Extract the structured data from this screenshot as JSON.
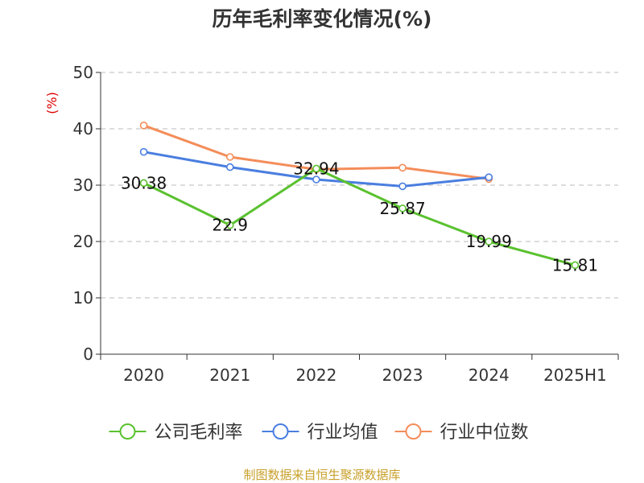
{
  "chart_data": {
    "type": "line",
    "title": "历年毛利率变化情况(%)",
    "ylabel": "(%)",
    "xlabel": "",
    "ylim": [
      0,
      50
    ],
    "yticks": [
      0,
      10,
      20,
      30,
      40,
      50
    ],
    "grid": true,
    "legend_position": "bottom-center",
    "categories": [
      "2020",
      "2021",
      "2022",
      "2023",
      "2024",
      "2025H1"
    ],
    "series": [
      {
        "name": "公司毛利率",
        "color": "#5ac12f",
        "values": [
          30.38,
          22.9,
          32.94,
          25.87,
          19.99,
          15.81
        ],
        "labels": [
          "30.38",
          "22.9",
          "32.94",
          "25.87",
          "19.99",
          "15.81"
        ]
      },
      {
        "name": "行业均值",
        "color": "#4a7ee0",
        "values": [
          35.9,
          33.2,
          31.0,
          29.8,
          31.4,
          null
        ]
      },
      {
        "name": "行业中位数",
        "color": "#f48d5a",
        "values": [
          40.6,
          35.0,
          32.8,
          33.1,
          31.1,
          null
        ]
      }
    ]
  },
  "source_note": "制图数据来自恒生聚源数据库",
  "colors": {
    "ylabel": "#dd0000",
    "axis": "#333333",
    "grid": "#bbbbbb",
    "source": "#c8a02a"
  }
}
